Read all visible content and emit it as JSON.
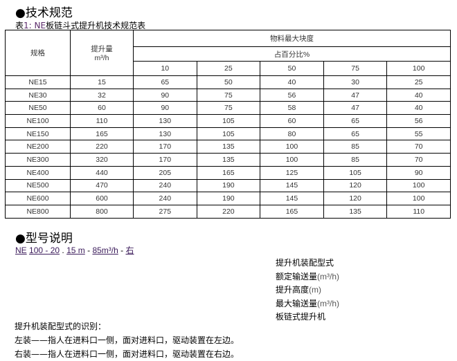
{
  "section1": "●技术规范",
  "caption": {
    "prefix": "表",
    "highlight": "1: NE",
    "rest": "板链斗式提升机技术规范表"
  },
  "table": {
    "col_spec": "规格",
    "col_capacity": "提升量",
    "col_capacity_unit": "m³/h",
    "col_lump": "物料最大块度",
    "col_pct": "占百分比%",
    "pct_headers": [
      "10",
      "25",
      "50",
      "75",
      "100"
    ],
    "rows": [
      [
        "NE15",
        "15",
        "65",
        "50",
        "40",
        "30",
        "25"
      ],
      [
        "NE30",
        "32",
        "90",
        "75",
        "56",
        "47",
        "40"
      ],
      [
        "NE50",
        "60",
        "90",
        "75",
        "58",
        "47",
        "40"
      ],
      [
        "NE100",
        "110",
        "130",
        "105",
        "60",
        "65",
        "56"
      ],
      [
        "NE150",
        "165",
        "130",
        "105",
        "80",
        "65",
        "55"
      ],
      [
        "NE200",
        "220",
        "170",
        "135",
        "100",
        "85",
        "70"
      ],
      [
        "NE300",
        "320",
        "170",
        "135",
        "100",
        "85",
        "70"
      ],
      [
        "NE400",
        "440",
        "205",
        "165",
        "125",
        "105",
        "90"
      ],
      [
        "NE500",
        "470",
        "240",
        "190",
        "145",
        "120",
        "100"
      ],
      [
        "NE600",
        "600",
        "240",
        "190",
        "145",
        "120",
        "100"
      ],
      [
        "NE800",
        "800",
        "275",
        "220",
        "165",
        "135",
        "110"
      ]
    ]
  },
  "section2": "●型号说明",
  "model": {
    "p1": "NE",
    "s1": " ",
    "p2": "100 - 20",
    "s2": " . ",
    "p3": "15 m",
    "s3": " - ",
    "p4": "85m³/h",
    "s4": " - ",
    "p5": "右"
  },
  "labels": [
    {
      "t": "提升机装配型式",
      "u": ""
    },
    {
      "t": "额定输送量",
      "u": "(m³/h)"
    },
    {
      "t": "提升高度",
      "u": "(m)"
    },
    {
      "t": "最大输送量",
      "u": "(m³/h)"
    },
    {
      "t": "板链式提升机",
      "u": ""
    }
  ],
  "notes": [
    "提升机装配型式的识别：",
    "左装——指人在进料口一侧，面对进料口，驱动装置在左边。",
    "右装——指人在进料口一侧，面对进料口，驱动装置在右边。"
  ]
}
